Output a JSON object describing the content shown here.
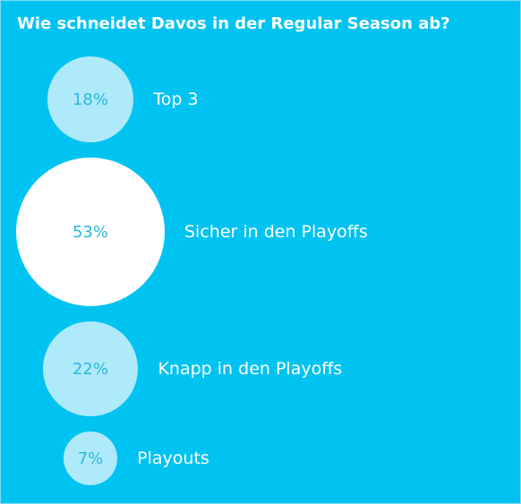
{
  "poll": {
    "title": "Wie schneidet Davos in der Regular Season ab?"
  },
  "chart_data": {
    "type": "bubble",
    "title": "Wie schneidet Davos in der Regular Season ab?",
    "unit": "%",
    "categories": [
      "Top 3",
      "Sicher in den Playoffs",
      "Knapp in den Playoffs",
      "Playouts"
    ],
    "values": [
      18,
      53,
      22,
      7
    ],
    "value_labels": [
      "18%",
      "53%",
      "22%",
      "7%"
    ],
    "highlighted": "Sicher in den Playoffs"
  },
  "colors": {
    "background": "#00c3f1",
    "bubble": "#aeeafa",
    "bubble_highlight": "#ffffff",
    "bubble_text": "#2bb8de",
    "label_text": "#ffffff"
  }
}
